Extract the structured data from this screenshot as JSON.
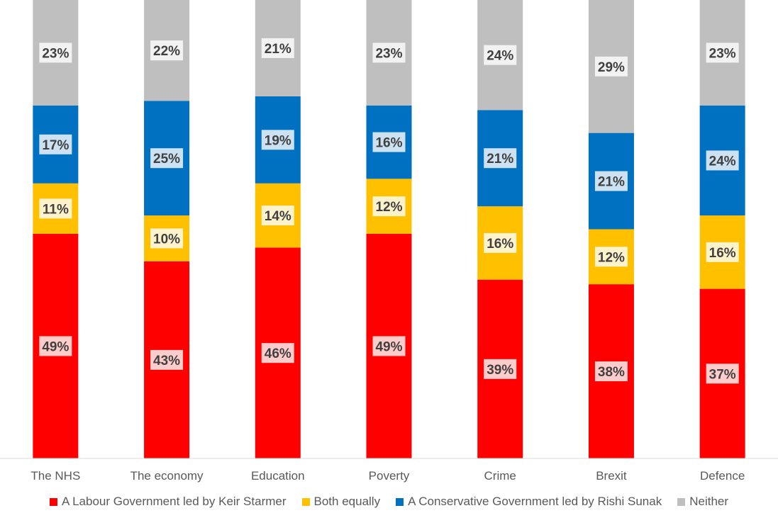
{
  "chart_data": {
    "type": "bar",
    "stacked": true,
    "categories": [
      "The NHS",
      "The economy",
      "Education",
      "Poverty",
      "Crime",
      "Brexit",
      "Defence"
    ],
    "series": [
      {
        "name": "A Labour Government led by Keir Starmer",
        "color": "#ff0000",
        "values": [
          49,
          43,
          46,
          49,
          39,
          38,
          37
        ]
      },
      {
        "name": "Both equally",
        "color": "#ffc000",
        "values": [
          11,
          10,
          14,
          12,
          16,
          12,
          16
        ]
      },
      {
        "name": "A Conservative Government led by Rishi Sunak",
        "color": "#0070c0",
        "values": [
          17,
          25,
          19,
          16,
          21,
          21,
          24
        ]
      },
      {
        "name": "Neither",
        "color": "#bfbfbf",
        "values": [
          23,
          22,
          21,
          23,
          24,
          29,
          23
        ]
      }
    ],
    "value_suffix": "%",
    "ylim": [
      0,
      100
    ],
    "grid": false,
    "legend_position": "bottom"
  }
}
